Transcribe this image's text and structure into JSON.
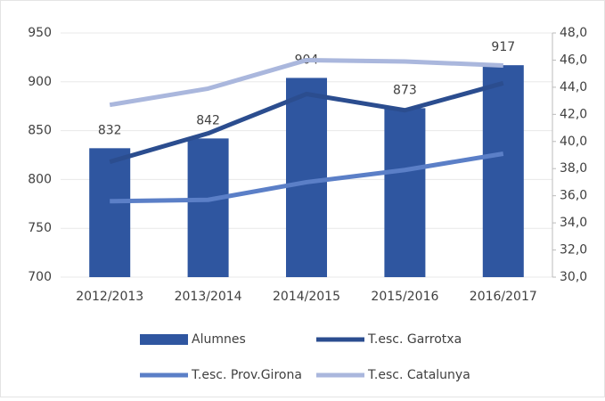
{
  "chart_data": {
    "type": "combo",
    "categories": [
      "2012/2013",
      "2013/2014",
      "2014/2015",
      "2015/2016",
      "2016/2017"
    ],
    "series": [
      {
        "name": "Alumnes",
        "type": "bar",
        "color": "#2f56a0",
        "values": [
          832,
          842,
          904,
          873,
          917
        ]
      },
      {
        "name": "T.esc. Garrotxa",
        "type": "line",
        "axis": "y2",
        "color": "#2b4d8f",
        "values": [
          38.5,
          40.6,
          43.5,
          42.3,
          44.3
        ]
      },
      {
        "name": "T.esc. Prov.Girona",
        "type": "line",
        "axis": "y2",
        "color": "#5b7fc7",
        "values": [
          35.6,
          35.7,
          37.0,
          37.9,
          39.1
        ]
      },
      {
        "name": "T.esc. Catalunya",
        "type": "line",
        "axis": "y2",
        "color": "#aab7dd",
        "values": [
          42.7,
          43.9,
          46.0,
          45.9,
          45.6
        ]
      }
    ],
    "ylim": [
      700,
      950
    ],
    "yticks": [
      700,
      750,
      800,
      850,
      900,
      950
    ],
    "y2lim": [
      30,
      48
    ],
    "y2ticks": [
      {
        "value": 30,
        "label": "30,0"
      },
      {
        "value": 32,
        "label": "32,0"
      },
      {
        "value": 34,
        "label": "34,0"
      },
      {
        "value": 36,
        "label": "36,0"
      },
      {
        "value": 38,
        "label": "38,0"
      },
      {
        "value": 40,
        "label": "40,0"
      },
      {
        "value": 42,
        "label": "42,0"
      },
      {
        "value": 44,
        "label": "44,0"
      },
      {
        "value": 46,
        "label": "46,0"
      },
      {
        "value": 48,
        "label": "48,0"
      }
    ],
    "legend": "bottom"
  }
}
